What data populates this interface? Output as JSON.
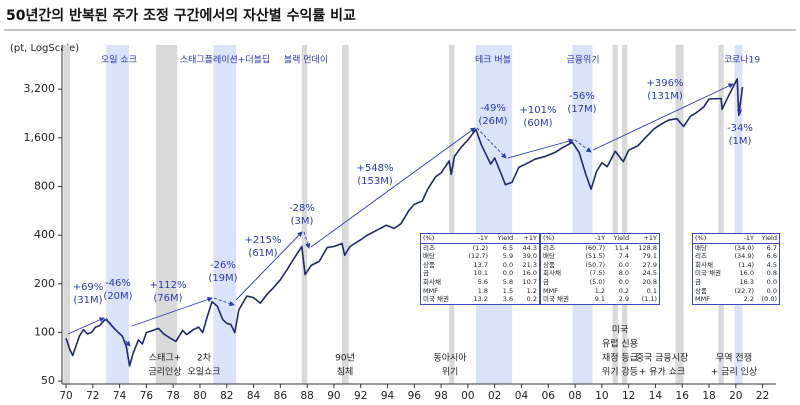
{
  "chart_data": {
    "type": "line",
    "title": "50년간의 반복된 주가 조정 구간에서의 자산별 수익률 비교",
    "y_label": "(pt, LogScale)",
    "log_scale": true,
    "ylim": [
      48,
      6000
    ],
    "yticks": [
      50,
      100,
      200,
      400,
      800,
      {
        "value": 1600,
        "label": "1,600"
      },
      {
        "value": 3200,
        "label": "3,200"
      }
    ],
    "xlim": [
      1969.7,
      2023
    ],
    "xticks": [
      {
        "value": 1970,
        "label": "70"
      },
      {
        "value": 1972,
        "label": "72"
      },
      {
        "value": 1974,
        "label": "74"
      },
      {
        "value": 1976,
        "label": "76"
      },
      {
        "value": 1978,
        "label": "78"
      },
      {
        "value": 1980,
        "label": "80"
      },
      {
        "value": 1982,
        "label": "82"
      },
      {
        "value": 1984,
        "label": "84"
      },
      {
        "value": 1986,
        "label": "86"
      },
      {
        "value": 1988,
        "label": "88"
      },
      {
        "value": 1990,
        "label": "90"
      },
      {
        "value": 1992,
        "label": "92"
      },
      {
        "value": 1994,
        "label": "94"
      },
      {
        "value": 1996,
        "label": "96"
      },
      {
        "value": 1998,
        "label": "98"
      },
      {
        "value": 2000,
        "label": "00"
      },
      {
        "value": 2002,
        "label": "02"
      },
      {
        "value": 2004,
        "label": "04"
      },
      {
        "value": 2006,
        "label": "06"
      },
      {
        "value": 2008,
        "label": "08"
      },
      {
        "value": 2010,
        "label": "10"
      },
      {
        "value": 2012,
        "label": "12"
      },
      {
        "value": 2014,
        "label": "14"
      },
      {
        "value": 2016,
        "label": "16"
      },
      {
        "value": 2018,
        "label": "18"
      },
      {
        "value": 2020,
        "label": "20"
      },
      {
        "value": 2022,
        "label": "22"
      }
    ],
    "color": "#1f2a6b",
    "x": [
      1970.0,
      1970.3,
      1970.5,
      1970.8,
      1971.0,
      1971.3,
      1971.6,
      1971.9,
      1972.2,
      1972.5,
      1972.9,
      1973.1,
      1973.5,
      1973.9,
      1974.2,
      1974.5,
      1974.75,
      1975.0,
      1975.4,
      1975.7,
      1976.0,
      1976.5,
      1976.9,
      1977.3,
      1977.8,
      1978.2,
      1978.7,
      1979.0,
      1979.5,
      1979.9,
      1980.2,
      1980.5,
      1980.9,
      1981.3,
      1981.7,
      1982.0,
      1982.3,
      1982.6,
      1982.9,
      1983.5,
      1984.0,
      1984.5,
      1985.0,
      1985.5,
      1986.0,
      1986.5,
      1987.0,
      1987.6,
      1987.85,
      1988.3,
      1988.9,
      1989.5,
      1990.0,
      1990.6,
      1990.8,
      1991.2,
      1991.9,
      1992.5,
      1993.0,
      1993.9,
      1994.5,
      1995.0,
      1995.6,
      1996.0,
      1996.6,
      1997.0,
      1997.6,
      1998.0,
      1998.6,
      1998.75,
      1999.0,
      1999.5,
      2000.0,
      2000.6,
      2001.0,
      2001.7,
      2002.0,
      2002.5,
      2002.8,
      2003.3,
      2003.8,
      2004.5,
      2005.0,
      2005.8,
      2006.5,
      2007.0,
      2007.8,
      2008.3,
      2008.8,
      2009.2,
      2009.6,
      2010.0,
      2010.4,
      2011.0,
      2011.6,
      2012.0,
      2012.7,
      2013.3,
      2013.9,
      2014.5,
      2015.0,
      2015.6,
      2016.1,
      2016.6,
      2017.0,
      2017.6,
      2018.0,
      2018.9,
      2018.98,
      2019.5,
      2020.1,
      2020.22,
      2020.5
    ],
    "values": [
      92,
      78,
      72,
      85,
      95,
      104,
      98,
      100,
      108,
      110,
      120,
      118,
      108,
      100,
      95,
      82,
      62,
      74,
      90,
      85,
      100,
      103,
      106,
      98,
      92,
      88,
      103,
      97,
      104,
      108,
      100,
      122,
      155,
      145,
      120,
      114,
      112,
      100,
      138,
      168,
      164,
      152,
      172,
      190,
      212,
      245,
      285,
      340,
      228,
      260,
      275,
      335,
      340,
      355,
      300,
      340,
      370,
      400,
      420,
      460,
      440,
      470,
      570,
      620,
      650,
      770,
      920,
      970,
      1150,
      950,
      1230,
      1400,
      1550,
      1800,
      1450,
      1100,
      1200,
      950,
      820,
      850,
      1050,
      1120,
      1180,
      1230,
      1300,
      1380,
      1500,
      1300,
      950,
      770,
      990,
      1120,
      1060,
      1320,
      1140,
      1340,
      1430,
      1620,
      1820,
      1960,
      2060,
      2100,
      1880,
      2170,
      2270,
      2480,
      2780,
      2800,
      2400,
      2950,
      3700,
      2200,
      3300
    ],
    "shaded_periods": [
      {
        "start": 1969.8,
        "end": 1970.3,
        "color": "#d9d9d9"
      },
      {
        "start": 1973.0,
        "end": 1974.7,
        "color": "#dbe3fb"
      },
      {
        "start": 1976.7,
        "end": 1978.3,
        "color": "#d9d9d9"
      },
      {
        "start": 1981.0,
        "end": 1982.7,
        "color": "#dbe3fb"
      },
      {
        "start": 1987.6,
        "end": 1988.0,
        "color": "#d9d9d9"
      },
      {
        "start": 1990.6,
        "end": 1991.1,
        "color": "#d9d9d9"
      },
      {
        "start": 1998.6,
        "end": 1999.0,
        "color": "#d9d9d9"
      },
      {
        "start": 2000.6,
        "end": 2003.3,
        "color": "#dbe3fb"
      },
      {
        "start": 2007.8,
        "end": 2009.3,
        "color": "#dbe3fb"
      },
      {
        "start": 2010.8,
        "end": 2011.2,
        "color": "#d9d9d9"
      },
      {
        "start": 2011.5,
        "end": 2011.9,
        "color": "#d9d9d9"
      },
      {
        "start": 2015.5,
        "end": 2016.1,
        "color": "#d9d9d9"
      },
      {
        "start": 2018.7,
        "end": 2019.1,
        "color": "#d9d9d9"
      },
      {
        "start": 2019.9,
        "end": 2020.5,
        "color": "#dbe3fb"
      }
    ],
    "events_top": [
      "오일 쇼크",
      "스태그플레이션+더블딥",
      "블랙 먼데이",
      "테크 버블",
      "금융위기",
      "코로나19"
    ],
    "events_bottom": [
      [
        "스태그+",
        "금리인상"
      ],
      [
        "2차",
        "오일쇼크"
      ],
      [
        "90년",
        "침체"
      ],
      [
        "동아시아",
        "위기"
      ],
      [
        "미국",
        "유럽 신용",
        "재정 등급",
        "위기 강등"
      ],
      [
        "중국 금융시장",
        "+ 유가 쇼크"
      ],
      [
        "무역 전쟁",
        "+ 금리 인상"
      ]
    ],
    "annotations": [
      [
        "+69%",
        "(31M)"
      ],
      [
        "-46%",
        "(20M)"
      ],
      [
        "+112%",
        "(76M)"
      ],
      [
        "-26%",
        "(19M)"
      ],
      [
        "+215%",
        "(61M)"
      ],
      [
        "-28%",
        "(3M)"
      ],
      [
        "+548%",
        "(153M)"
      ],
      [
        "-49%",
        "(26M)"
      ],
      [
        "+101%",
        "(60M)"
      ],
      [
        "-56%",
        "(17M)"
      ],
      [
        "+396%",
        "(131M)"
      ],
      [
        "-34%",
        "(1M)"
      ]
    ],
    "tables": [
      {
        "header": [
          "(%)",
          "-1Y",
          "Yield",
          "+1Y"
        ],
        "rows": [
          [
            "리츠",
            "(1.2)",
            "6.5",
            "44.3"
          ],
          [
            "배당",
            "(12.7)",
            "5.9",
            "39.0"
          ],
          [
            "상품",
            "13.7",
            "0.0",
            "21.3"
          ],
          [
            "금",
            "10.1",
            "0.0",
            "16.0"
          ],
          [
            "회사채",
            "5.6",
            "5.8",
            "10.7"
          ],
          [
            "MMF",
            "1.8",
            "1.5",
            "1.2"
          ],
          [
            "미국 채권",
            "13.2",
            "3.6",
            "0.2"
          ]
        ]
      },
      {
        "header": [
          "(%)",
          "-1Y",
          "Yield",
          "+1Y"
        ],
        "rows": [
          [
            "리츠",
            "(60.7)",
            "11.4",
            "128.8"
          ],
          [
            "배당",
            "(51.5)",
            "7.4",
            "79.1"
          ],
          [
            "상품",
            "(50.7)",
            "0.0",
            "27.9"
          ],
          [
            "회사채",
            "(7.5)",
            "8.0",
            "24.5"
          ],
          [
            "금",
            "(5.0)",
            "0.0",
            "20.8"
          ],
          [
            "MMF",
            "1.2",
            "0.2",
            "0.1"
          ],
          [
            "미국 채권",
            "9.1",
            "2.9",
            "(1.1)"
          ]
        ]
      },
      {
        "header": [
          "(%)",
          "-1Y",
          "Yield"
        ],
        "rows": [
          [
            "배당",
            "(34.0)",
            "6.7"
          ],
          [
            "리츠",
            "(34.9)",
            "6.6"
          ],
          [
            "회사채",
            "(1.4)",
            "4.5"
          ],
          [
            "미국 채권",
            "16.0",
            "0.8"
          ],
          [
            "금",
            "16.3",
            "0.0"
          ],
          [
            "상품",
            "(22.7)",
            "0.0"
          ],
          [
            "MMF",
            "2.2",
            "(0.0)"
          ]
        ]
      }
    ]
  }
}
